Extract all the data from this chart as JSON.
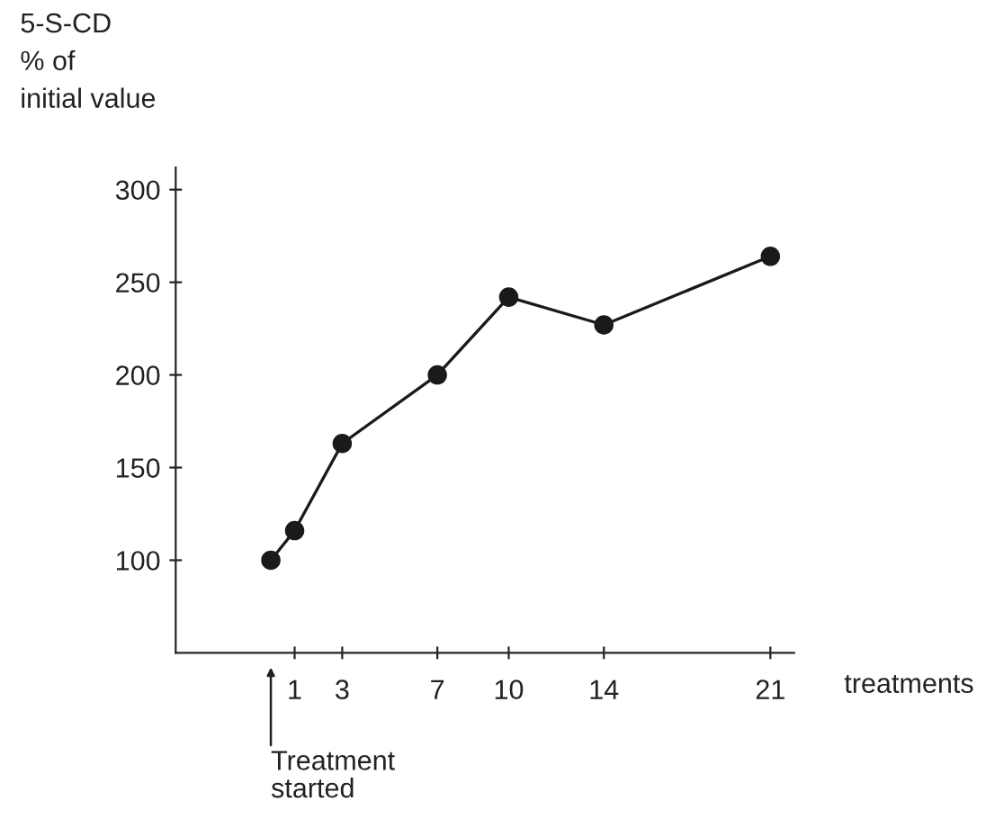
{
  "chart_data": {
    "type": "line",
    "ylabel": "5-S-CD\n% of\ninitial value",
    "xlabel": "treatments",
    "x": [
      0,
      1,
      3,
      7,
      10,
      14,
      21
    ],
    "series": [
      {
        "color": "#1a1a1a",
        "values": [
          100,
          116,
          163,
          200,
          242,
          227,
          264
        ]
      }
    ],
    "xlim": [
      -4,
      22
    ],
    "xticks": [
      1,
      3,
      7,
      10,
      14,
      21
    ],
    "ylim": [
      50,
      312
    ],
    "yticks": [
      100,
      150,
      200,
      250,
      300
    ],
    "marker": "circle",
    "line_style": "solid",
    "grid": false,
    "legend": false,
    "annotations": [
      "Treatment\nstarted"
    ]
  }
}
